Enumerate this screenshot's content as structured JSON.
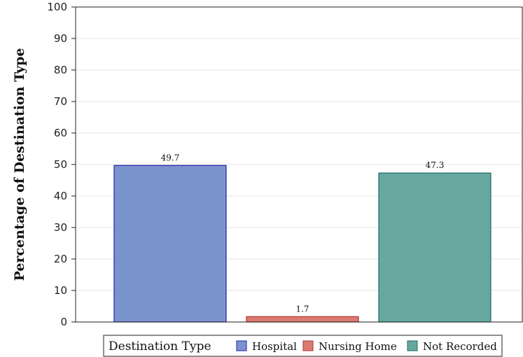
{
  "chart_data": {
    "type": "bar",
    "categories": [
      "Hospital",
      "Nursing Home",
      "Not Recorded"
    ],
    "values": [
      49.7,
      1.7,
      47.3
    ],
    "data_labels": [
      "49.7",
      "1.7",
      "47.3"
    ],
    "colors": [
      "#7b93cd",
      "#db7b70",
      "#66a8a0"
    ],
    "edge_colors": [
      "#2222aa",
      "#aa3333",
      "#206a60"
    ],
    "ylabel": "Percentage of Destination Type",
    "xlabel": "",
    "ylim": [
      0,
      100
    ],
    "yticks": [
      0,
      10,
      20,
      30,
      40,
      50,
      60,
      70,
      80,
      90,
      100
    ],
    "grid": true,
    "legend": {
      "title": "Destination Type",
      "placement": "bottom-center",
      "entries": [
        "Hospital",
        "Nursing Home",
        "Not Recorded"
      ]
    }
  }
}
